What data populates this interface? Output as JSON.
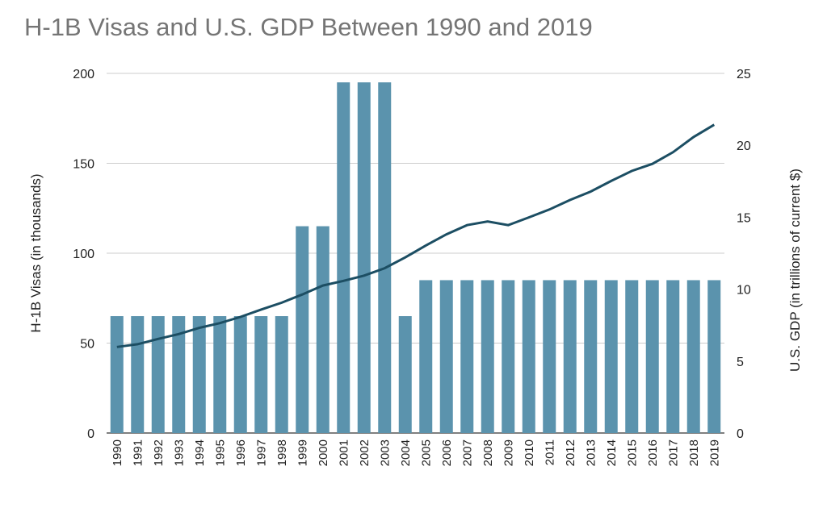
{
  "chart_data": {
    "type": "bar",
    "title": "H-1B Visas and U.S. GDP Between 1990 and 2019",
    "ylabel_left": "H-1B Visas (in thousands)",
    "ylabel_right": "U.S. GDP (in trillions of current $)",
    "ylim_left": [
      0,
      200
    ],
    "ylim_right": [
      0,
      25
    ],
    "yticks_left": [
      0,
      50,
      100,
      150,
      200
    ],
    "yticks_right": [
      0,
      5,
      10,
      15,
      20,
      25
    ],
    "grid": true,
    "categories": [
      "1990",
      "1991",
      "1992",
      "1993",
      "1994",
      "1995",
      "1996",
      "1997",
      "1998",
      "1999",
      "2000",
      "2001",
      "2002",
      "2003",
      "2004",
      "2005",
      "2006",
      "2007",
      "2008",
      "2009",
      "2010",
      "2011",
      "2012",
      "2013",
      "2014",
      "2015",
      "2016",
      "2017",
      "2018",
      "2019"
    ],
    "series": [
      {
        "type": "bar",
        "axis": "left",
        "color": "#5b93ad",
        "values": [
          65,
          65,
          65,
          65,
          65,
          65,
          65,
          65,
          65,
          115,
          115,
          195,
          195,
          195,
          65,
          85,
          85,
          85,
          85,
          85,
          85,
          85,
          85,
          85,
          85,
          85,
          85,
          85,
          85,
          85
        ]
      },
      {
        "type": "line",
        "axis": "right",
        "color": "#1c4e63",
        "values": [
          5.98,
          6.17,
          6.54,
          6.88,
          7.31,
          7.64,
          8.07,
          8.58,
          9.06,
          9.63,
          10.25,
          10.58,
          10.94,
          11.46,
          12.21,
          13.04,
          13.81,
          14.45,
          14.71,
          14.45,
          14.99,
          15.54,
          16.2,
          16.78,
          17.52,
          18.22,
          18.71,
          19.52,
          20.58,
          21.43
        ]
      }
    ]
  }
}
